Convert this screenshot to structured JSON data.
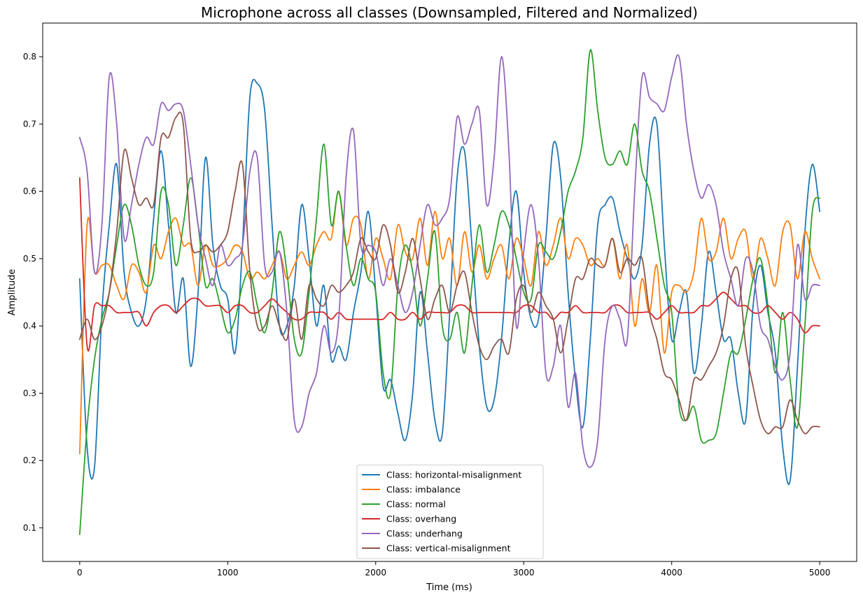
{
  "chart_data": {
    "type": "line",
    "title": "Microphone across all classes (Downsampled, Filtered and Normalized)",
    "xlabel": "Time (ms)",
    "ylabel": "Amplitude",
    "xlim": [
      -250,
      5250
    ],
    "ylim": [
      0.05,
      0.85
    ],
    "xticks": [
      0,
      1000,
      2000,
      3000,
      4000,
      5000
    ],
    "yticks": [
      0.1,
      0.2,
      0.3,
      0.4,
      0.5,
      0.6,
      0.7,
      0.8
    ],
    "grid": false,
    "legend_position": "bottom-center",
    "x": [
      0,
      50,
      100,
      150,
      200,
      250,
      300,
      350,
      400,
      450,
      500,
      550,
      600,
      650,
      700,
      750,
      800,
      850,
      900,
      950,
      1000,
      1050,
      1100,
      1150,
      1200,
      1250,
      1300,
      1350,
      1400,
      1450,
      1500,
      1550,
      1600,
      1650,
      1700,
      1750,
      1800,
      1850,
      1900,
      1950,
      2000,
      2050,
      2100,
      2150,
      2200,
      2250,
      2300,
      2350,
      2400,
      2450,
      2500,
      2550,
      2600,
      2650,
      2700,
      2750,
      2800,
      2850,
      2900,
      2950,
      3000,
      3050,
      3100,
      3150,
      3200,
      3250,
      3300,
      3350,
      3400,
      3450,
      3500,
      3550,
      3600,
      3650,
      3700,
      3750,
      3800,
      3850,
      3900,
      3950,
      4000,
      4050,
      4100,
      4150,
      4200,
      4250,
      4300,
      4350,
      4400,
      4450,
      4500,
      4550,
      4600,
      4650,
      4700,
      4750,
      4800,
      4850,
      4900,
      4950,
      5000
    ],
    "series": [
      {
        "name": "Class: horizontal-misalignment",
        "color": "#1f77b4",
        "values": [
          0.47,
          0.22,
          0.19,
          0.42,
          0.55,
          0.64,
          0.48,
          0.42,
          0.4,
          0.44,
          0.56,
          0.66,
          0.55,
          0.42,
          0.47,
          0.34,
          0.45,
          0.65,
          0.52,
          0.46,
          0.44,
          0.36,
          0.52,
          0.74,
          0.76,
          0.72,
          0.55,
          0.4,
          0.4,
          0.46,
          0.58,
          0.5,
          0.4,
          0.46,
          0.35,
          0.37,
          0.35,
          0.42,
          0.48,
          0.57,
          0.45,
          0.31,
          0.32,
          0.27,
          0.23,
          0.3,
          0.45,
          0.36,
          0.26,
          0.24,
          0.42,
          0.62,
          0.66,
          0.52,
          0.37,
          0.28,
          0.29,
          0.38,
          0.52,
          0.6,
          0.48,
          0.41,
          0.41,
          0.53,
          0.67,
          0.62,
          0.45,
          0.32,
          0.25,
          0.38,
          0.55,
          0.58,
          0.59,
          0.54,
          0.5,
          0.47,
          0.52,
          0.67,
          0.7,
          0.52,
          0.38,
          0.42,
          0.45,
          0.33,
          0.4,
          0.51,
          0.45,
          0.38,
          0.38,
          0.3,
          0.26,
          0.43,
          0.49,
          0.42,
          0.36,
          0.22,
          0.17,
          0.34,
          0.54,
          0.64,
          0.57
        ]
      },
      {
        "name": "Class: imbalance",
        "color": "#ff7f0e",
        "values": [
          0.21,
          0.55,
          0.48,
          0.49,
          0.49,
          0.46,
          0.44,
          0.49,
          0.48,
          0.45,
          0.52,
          0.5,
          0.54,
          0.56,
          0.52,
          0.52,
          0.46,
          0.52,
          0.49,
          0.49,
          0.5,
          0.52,
          0.51,
          0.47,
          0.48,
          0.47,
          0.49,
          0.51,
          0.47,
          0.49,
          0.51,
          0.49,
          0.52,
          0.54,
          0.53,
          0.6,
          0.52,
          0.56,
          0.55,
          0.47,
          0.53,
          0.5,
          0.47,
          0.55,
          0.51,
          0.5,
          0.56,
          0.49,
          0.57,
          0.5,
          0.53,
          0.46,
          0.54,
          0.48,
          0.52,
          0.47,
          0.5,
          0.52,
          0.47,
          0.53,
          0.5,
          0.46,
          0.54,
          0.49,
          0.52,
          0.56,
          0.5,
          0.53,
          0.52,
          0.49,
          0.5,
          0.49,
          0.53,
          0.47,
          0.52,
          0.4,
          0.47,
          0.42,
          0.49,
          0.36,
          0.45,
          0.46,
          0.45,
          0.48,
          0.56,
          0.5,
          0.51,
          0.56,
          0.5,
          0.53,
          0.54,
          0.47,
          0.53,
          0.5,
          0.46,
          0.54,
          0.55,
          0.47,
          0.54,
          0.5,
          0.47
        ]
      },
      {
        "name": "Class: normal",
        "color": "#2ca02c",
        "values": [
          0.09,
          0.25,
          0.35,
          0.41,
          0.45,
          0.52,
          0.58,
          0.55,
          0.49,
          0.46,
          0.48,
          0.6,
          0.58,
          0.49,
          0.55,
          0.62,
          0.55,
          0.46,
          0.47,
          0.43,
          0.39,
          0.41,
          0.46,
          0.48,
          0.43,
          0.39,
          0.45,
          0.54,
          0.48,
          0.38,
          0.36,
          0.45,
          0.56,
          0.67,
          0.55,
          0.6,
          0.52,
          0.46,
          0.5,
          0.47,
          0.45,
          0.33,
          0.3,
          0.46,
          0.52,
          0.48,
          0.4,
          0.47,
          0.54,
          0.4,
          0.38,
          0.42,
          0.36,
          0.46,
          0.55,
          0.48,
          0.52,
          0.57,
          0.55,
          0.5,
          0.45,
          0.44,
          0.52,
          0.51,
          0.5,
          0.54,
          0.6,
          0.63,
          0.68,
          0.81,
          0.72,
          0.65,
          0.64,
          0.66,
          0.64,
          0.7,
          0.63,
          0.6,
          0.53,
          0.46,
          0.42,
          0.28,
          0.26,
          0.28,
          0.23,
          0.23,
          0.24,
          0.3,
          0.36,
          0.36,
          0.41,
          0.47,
          0.5,
          0.43,
          0.33,
          0.42,
          0.32,
          0.25,
          0.4,
          0.57,
          0.59
        ]
      },
      {
        "name": "Class: overhang",
        "color": "#d62728",
        "values": [
          0.62,
          0.37,
          0.43,
          0.43,
          0.43,
          0.42,
          0.42,
          0.42,
          0.42,
          0.4,
          0.42,
          0.43,
          0.43,
          0.42,
          0.43,
          0.44,
          0.44,
          0.43,
          0.43,
          0.43,
          0.42,
          0.43,
          0.43,
          0.42,
          0.42,
          0.43,
          0.44,
          0.43,
          0.42,
          0.41,
          0.41,
          0.42,
          0.42,
          0.42,
          0.41,
          0.42,
          0.41,
          0.41,
          0.41,
          0.41,
          0.41,
          0.41,
          0.42,
          0.41,
          0.41,
          0.42,
          0.41,
          0.42,
          0.42,
          0.42,
          0.42,
          0.43,
          0.43,
          0.42,
          0.42,
          0.42,
          0.42,
          0.42,
          0.42,
          0.42,
          0.43,
          0.43,
          0.42,
          0.42,
          0.41,
          0.42,
          0.42,
          0.43,
          0.42,
          0.42,
          0.42,
          0.42,
          0.43,
          0.43,
          0.42,
          0.42,
          0.42,
          0.42,
          0.41,
          0.42,
          0.43,
          0.42,
          0.42,
          0.42,
          0.43,
          0.43,
          0.44,
          0.45,
          0.44,
          0.43,
          0.43,
          0.42,
          0.42,
          0.43,
          0.42,
          0.41,
          0.42,
          0.41,
          0.39,
          0.4,
          0.4
        ]
      },
      {
        "name": "Class: underhang",
        "color": "#9467bd",
        "values": [
          0.68,
          0.63,
          0.48,
          0.55,
          0.77,
          0.7,
          0.53,
          0.58,
          0.64,
          0.68,
          0.67,
          0.73,
          0.72,
          0.73,
          0.72,
          0.64,
          0.55,
          0.5,
          0.46,
          0.52,
          0.49,
          0.5,
          0.52,
          0.63,
          0.65,
          0.49,
          0.48,
          0.51,
          0.42,
          0.26,
          0.25,
          0.3,
          0.33,
          0.4,
          0.36,
          0.41,
          0.62,
          0.69,
          0.52,
          0.52,
          0.51,
          0.46,
          0.5,
          0.46,
          0.42,
          0.45,
          0.52,
          0.58,
          0.55,
          0.56,
          0.59,
          0.71,
          0.67,
          0.7,
          0.72,
          0.58,
          0.65,
          0.8,
          0.66,
          0.4,
          0.51,
          0.58,
          0.5,
          0.33,
          0.34,
          0.4,
          0.28,
          0.33,
          0.22,
          0.19,
          0.23,
          0.38,
          0.43,
          0.41,
          0.38,
          0.6,
          0.77,
          0.74,
          0.73,
          0.72,
          0.77,
          0.8,
          0.7,
          0.63,
          0.59,
          0.61,
          0.58,
          0.51,
          0.47,
          0.43,
          0.5,
          0.48,
          0.4,
          0.38,
          0.34,
          0.32,
          0.36,
          0.52,
          0.44,
          0.46,
          0.46
        ]
      },
      {
        "name": "Class: vertical-misalignment",
        "color": "#8c564b",
        "values": [
          0.38,
          0.41,
          0.38,
          0.4,
          0.45,
          0.54,
          0.66,
          0.62,
          0.58,
          0.59,
          0.58,
          0.68,
          0.68,
          0.71,
          0.7,
          0.53,
          0.51,
          0.52,
          0.51,
          0.52,
          0.54,
          0.6,
          0.64,
          0.48,
          0.4,
          0.4,
          0.43,
          0.4,
          0.38,
          0.44,
          0.38,
          0.46,
          0.44,
          0.43,
          0.46,
          0.45,
          0.46,
          0.48,
          0.53,
          0.51,
          0.5,
          0.55,
          0.52,
          0.45,
          0.48,
          0.53,
          0.47,
          0.41,
          0.44,
          0.46,
          0.42,
          0.46,
          0.48,
          0.42,
          0.37,
          0.35,
          0.37,
          0.38,
          0.36,
          0.44,
          0.46,
          0.42,
          0.45,
          0.43,
          0.41,
          0.36,
          0.41,
          0.47,
          0.47,
          0.5,
          0.49,
          0.49,
          0.53,
          0.48,
          0.5,
          0.49,
          0.5,
          0.42,
          0.38,
          0.33,
          0.32,
          0.29,
          0.26,
          0.32,
          0.32,
          0.34,
          0.36,
          0.4,
          0.47,
          0.48,
          0.37,
          0.31,
          0.26,
          0.24,
          0.25,
          0.25,
          0.29,
          0.26,
          0.24,
          0.25,
          0.25
        ]
      }
    ]
  }
}
